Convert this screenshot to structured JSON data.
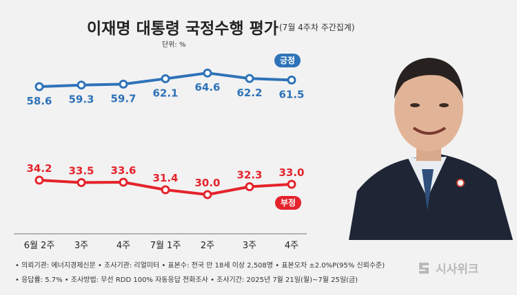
{
  "header": {
    "title": "이재명 대통령 국정수행 평가",
    "subtitle": "(7월 4주차 주간집계)",
    "unit": "단위: %"
  },
  "chart_data": {
    "type": "line",
    "categories": [
      "6월 2주",
      "3주",
      "4주",
      "7월 1주",
      "2주",
      "3주",
      "4주"
    ],
    "series": [
      {
        "name": "긍정",
        "color": "#2e73b8",
        "values": [
          58.6,
          59.3,
          59.7,
          62.1,
          64.6,
          62.2,
          61.5
        ]
      },
      {
        "name": "부정",
        "color": "#e4232b",
        "values": [
          34.2,
          33.5,
          33.6,
          31.4,
          30.0,
          32.3,
          33.0
        ]
      }
    ],
    "value_labels": {
      "positive": [
        "58.6",
        "59.3",
        "59.7",
        "62.1",
        "64.6",
        "62.2",
        "61.5"
      ],
      "negative": [
        "34.2",
        "33.5",
        "33.6",
        "31.4",
        "30.0",
        "32.3",
        "33.0"
      ]
    },
    "ylabel": "%"
  },
  "legend": {
    "positive": "긍정",
    "negative": "부정"
  },
  "footer": {
    "line1": "• 의뢰기관: 에너지경제신문 • 조사기관: 리얼미터 • 표본수: 전국 만 18세 이상 2,508명 • 표본오차 ±2.0%P(95% 신뢰수준)",
    "line2": "• 응답률: 5.7% • 조사방법: 무선 RDD 100% 자동응답 전화조사 • 조사기간: 2025년 7월 21일(월)~7월 25일(금)",
    "logo": "시사위크"
  }
}
